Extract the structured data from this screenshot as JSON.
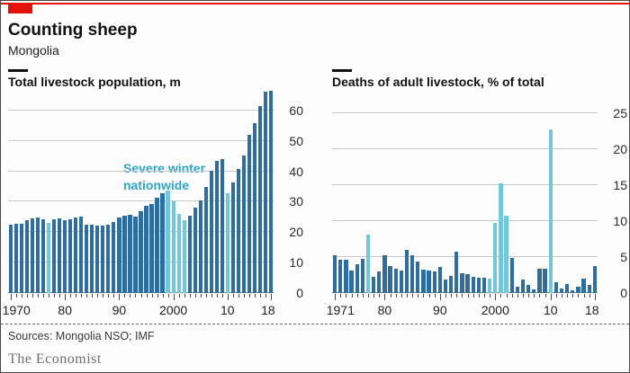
{
  "header": {
    "title": "Counting sheep",
    "subtitle": "Mongolia"
  },
  "footer": {
    "sources": "Sources: Mongolia NSO; IMF",
    "brand": "The Economist"
  },
  "colors": {
    "accent_red": "#e3120b",
    "bar_dark": "#2e6d9e",
    "bar_highlight": "#74c6d8",
    "annotation_text": "#2fa3c6",
    "gridline": "#c9c9c9",
    "zero_line": "#848484"
  },
  "chart_data": [
    {
      "type": "bar",
      "title": "Total livestock population, m",
      "xlabel": "",
      "ylabel": "million head",
      "x_start": 1970,
      "x": [
        1970,
        1971,
        1972,
        1973,
        1974,
        1975,
        1976,
        1977,
        1978,
        1979,
        1980,
        1981,
        1982,
        1983,
        1984,
        1985,
        1986,
        1987,
        1988,
        1989,
        1990,
        1991,
        1992,
        1993,
        1994,
        1995,
        1996,
        1997,
        1998,
        1999,
        2000,
        2001,
        2002,
        2003,
        2004,
        2005,
        2006,
        2007,
        2008,
        2009,
        2010,
        2011,
        2012,
        2013,
        2014,
        2015,
        2016,
        2017,
        2018
      ],
      "values": [
        22.6,
        22.8,
        22.9,
        23.9,
        24.5,
        24.7,
        24.2,
        23.0,
        24.2,
        24.4,
        23.9,
        24.2,
        24.8,
        25.0,
        22.6,
        22.4,
        22.3,
        22.3,
        22.6,
        23.4,
        24.7,
        25.3,
        25.7,
        25.2,
        26.8,
        28.6,
        29.3,
        31.3,
        32.9,
        33.6,
        30.2,
        26.1,
        23.9,
        25.4,
        28.0,
        30.4,
        34.8,
        40.3,
        43.3,
        44.0,
        32.7,
        36.3,
        40.9,
        45.1,
        51.9,
        55.9,
        61.5,
        66.2,
        66.5
      ],
      "highlight_years": [
        1977,
        1999,
        2000,
        2001,
        2002,
        2010
      ],
      "annotation": {
        "lines": [
          "Severe winter",
          "nationwide"
        ]
      },
      "ylim": [
        0,
        65
      ],
      "yticks": [
        0,
        10,
        20,
        30,
        40,
        50,
        60
      ],
      "grid": "on",
      "legend": "none",
      "xticks": [
        {
          "year": 1970,
          "label": "1970"
        },
        {
          "year": 1980,
          "label": "80"
        },
        {
          "year": 1990,
          "label": "90"
        },
        {
          "year": 2000,
          "label": "2000"
        },
        {
          "year": 2010,
          "label": "10"
        },
        {
          "year": 2018,
          "label": "18"
        }
      ]
    },
    {
      "type": "bar",
      "title": "Deaths of adult livestock, % of total",
      "xlabel": "",
      "ylabel": "% of total",
      "x_start": 1971,
      "x": [
        1971,
        1972,
        1973,
        1974,
        1975,
        1976,
        1977,
        1978,
        1979,
        1980,
        1981,
        1982,
        1983,
        1984,
        1985,
        1986,
        1987,
        1988,
        1989,
        1990,
        1991,
        1992,
        1993,
        1994,
        1995,
        1996,
        1997,
        1998,
        1999,
        2000,
        2001,
        2002,
        2003,
        2004,
        2005,
        2006,
        2007,
        2008,
        2009,
        2010,
        2011,
        2012,
        2013,
        2014,
        2015,
        2016,
        2017,
        2018
      ],
      "values": [
        5.2,
        4.6,
        4.6,
        3.1,
        4.0,
        4.7,
        8.1,
        2.3,
        3.0,
        5.3,
        3.7,
        3.4,
        3.1,
        6.0,
        5.3,
        4.4,
        3.3,
        3.1,
        3.0,
        3.6,
        1.9,
        2.4,
        5.8,
        2.8,
        2.6,
        2.3,
        2.1,
        2.1,
        2.0,
        9.8,
        15.3,
        10.7,
        4.9,
        0.9,
        1.9,
        1.1,
        0.5,
        3.4,
        3.4,
        22.8,
        1.5,
        0.6,
        1.3,
        0.4,
        0.9,
        2.0,
        1.1,
        3.7
      ],
      "highlight_years": [
        1977,
        1999,
        2000,
        2001,
        2002,
        2010
      ],
      "annotation": null,
      "ylim": [
        0,
        27.5
      ],
      "yticks": [
        0,
        5,
        10,
        15,
        20,
        25
      ],
      "grid": "on",
      "legend": "none",
      "xticks": [
        {
          "year": 1971,
          "label": "1971"
        },
        {
          "year": 1980,
          "label": "80"
        },
        {
          "year": 1990,
          "label": "90"
        },
        {
          "year": 2000,
          "label": "2000"
        },
        {
          "year": 2010,
          "label": "10"
        },
        {
          "year": 2018,
          "label": "18"
        }
      ]
    }
  ]
}
